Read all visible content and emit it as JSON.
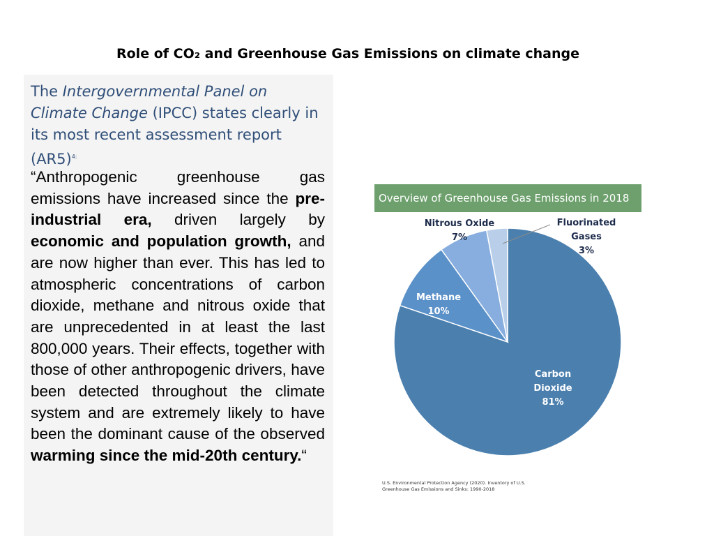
{
  "page": {
    "title": "Role of CO₂ and Greenhouse Gas Emissions on climate change"
  },
  "intro": {
    "lead": "The ",
    "ipcc_name": "Intergovernmental Panel on Climate Change",
    "rest": " (IPCC) states clearly in its most recent assessment report (AR5)",
    "footnote": "4:"
  },
  "quote": {
    "p1": "“Anthropogenic greenhouse gas emissions have increased since the ",
    "b1": "pre-industrial era,",
    "p2": " driven largely by ",
    "b2": "economic and population growth,",
    "p3": " and are now higher than ever. This has led to atmospheric concentrations of carbon dioxide, methane and nitrous oxide that are unprecedented in at least the last 800,000 years. Their effects, together with those of other anthropogenic drivers, have been detected throughout the climate system and are extremely likely to have been the dominant cause of the observed ",
    "b3": "warming since the mid-20th century.",
    "p4": "“"
  },
  "chart_data": {
    "type": "pie",
    "title": "Overview of Greenhouse Gas Emissions in 2018",
    "slices": [
      {
        "name": "Carbon Dioxide",
        "lines": [
          "Carbon",
          "Dioxide"
        ],
        "value": 81,
        "label": "81%",
        "color": "#4a7fae"
      },
      {
        "name": "Methane",
        "lines": [
          "Methane"
        ],
        "value": 10,
        "label": "10%",
        "color": "#5b91c9"
      },
      {
        "name": "Nitrous Oxide",
        "lines": [
          "Nitrous Oxide"
        ],
        "value": 7,
        "label": "7%",
        "color": "#87aede"
      },
      {
        "name": "Fluorinated Gases",
        "lines": [
          "Fluorinated",
          "Gases"
        ],
        "value": 3,
        "label": "3%",
        "color": "#b9cfe9"
      }
    ],
    "source": "U.S. Environmental Protection Agency (2020). Inventory of U.S. Greenhouse Gas Emissions and Sinks: 1990-2018"
  }
}
